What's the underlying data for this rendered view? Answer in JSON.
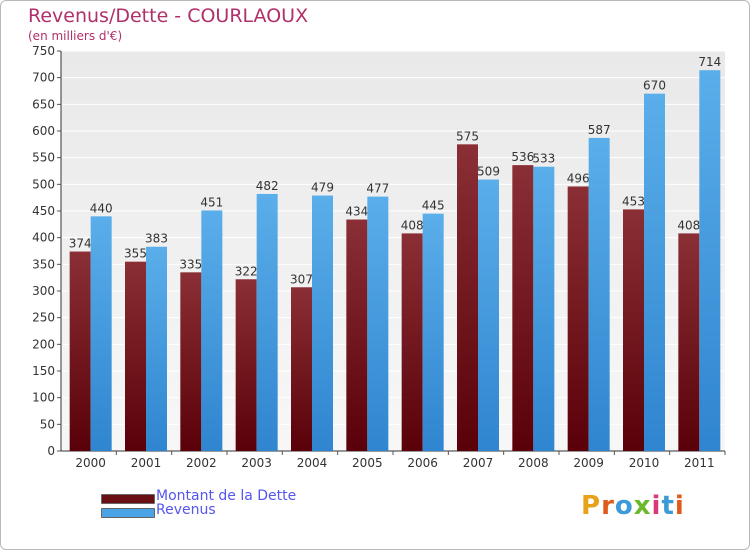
{
  "title": "Revenus/Dette - COURLAOUX",
  "subtitle": "(en milliers d'€)",
  "brand": "Proxiti",
  "colors": {
    "debt": "#7b2228",
    "revenue": "#4aa3e6",
    "title": "#b0306a",
    "legend_text": "#5555ee"
  },
  "legend": [
    {
      "label": "Montant de la Dette",
      "color": "#6a0f14"
    },
    {
      "label": "Revenus",
      "color": "#4aa3e6"
    }
  ],
  "chart_data": {
    "type": "bar",
    "title": "Revenus/Dette - COURLAOUX",
    "subtitle": "(en milliers d'€)",
    "categories": [
      "2000",
      "2001",
      "2002",
      "2003",
      "2004",
      "2005",
      "2006",
      "2007",
      "2008",
      "2009",
      "2010",
      "2011"
    ],
    "series": [
      {
        "name": "Montant de la Dette",
        "values": [
          374,
          355,
          335,
          322,
          307,
          434,
          408,
          575,
          536,
          496,
          453,
          408
        ]
      },
      {
        "name": "Revenus",
        "values": [
          440,
          383,
          451,
          482,
          479,
          477,
          445,
          509,
          533,
          587,
          670,
          714
        ]
      }
    ],
    "ylim": [
      0,
      750
    ],
    "yticks": [
      0,
      50,
      100,
      150,
      200,
      250,
      300,
      350,
      400,
      450,
      500,
      550,
      600,
      650,
      700,
      750
    ],
    "grid": true,
    "legend_position": "bottom-left"
  }
}
